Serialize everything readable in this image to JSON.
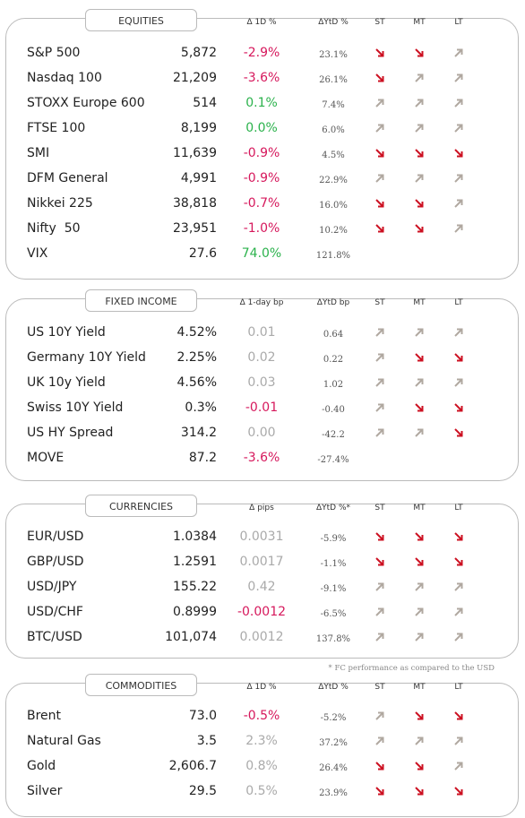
{
  "sections": [
    {
      "title": "EQUITIES",
      "headers": [
        "Δ 1D %",
        "ΔYtD %",
        "ST",
        "MT",
        "LT"
      ],
      "up_color": "#2bb24c",
      "rows": [
        [
          "S&P 500",
          "5,872",
          "-2.9%",
          "23.1%"
        ],
        [
          "Nasdaq 100",
          "21,209",
          "-3.6%",
          "26.1%"
        ],
        [
          "STOXX Europe 600",
          "514",
          "0.1%",
          "7.4%"
        ],
        [
          "FTSE 100",
          "8,199",
          "0.0%",
          "6.0%"
        ],
        [
          "SMI",
          "11,639",
          "-0.9%",
          "4.5%"
        ],
        [
          "DFM General",
          "4,991",
          "-0.9%",
          "22.9%"
        ],
        [
          "Nikkei 225",
          "38,818",
          "-0.7%",
          "16.0%"
        ],
        [
          "Nifty  50",
          "23,951",
          "-1.0%",
          "10.2%"
        ],
        [
          "VIX",
          "27.6",
          "74.0%",
          "121.8%"
        ]
      ]
    },
    {
      "title": "FIXED INCOME",
      "headers": [
        "Δ 1-day bp",
        "ΔYtD bp",
        "ST",
        "MT",
        "LT"
      ],
      "up_color": "#aaaaaa",
      "rows": [
        [
          "US 10Y Yield",
          "4.52%",
          "0.01",
          "0.64"
        ],
        [
          "Germany 10Y Yield",
          "2.25%",
          "0.02",
          "0.22"
        ],
        [
          "UK 10y Yield",
          "4.56%",
          "0.03",
          "1.02"
        ],
        [
          "Swiss 10Y Yield",
          "0.3%",
          "-0.01",
          "-0.40"
        ],
        [
          "US HY Spread",
          "314.2",
          "0.00",
          "-42.2"
        ],
        [
          "MOVE",
          "87.2",
          "-3.6%",
          "-27.4%"
        ]
      ]
    },
    {
      "title": "CURRENCIES",
      "headers": [
        "Δ pips",
        "ΔYtD %*",
        "ST",
        "MT",
        "LT"
      ],
      "up_color": "#aaaaaa",
      "rows": [
        [
          "EUR/USD",
          "1.0384",
          "0.0031",
          "-5.9%"
        ],
        [
          "GBP/USD",
          "1.2591",
          "0.0017",
          "-1.1%"
        ],
        [
          "USD/JPY",
          "155.22",
          "0.42",
          "-9.1%"
        ],
        [
          "USD/CHF",
          "0.8999",
          "-0.0012",
          "-6.5%"
        ],
        [
          "BTC/USD",
          "101,074",
          "0.0012",
          "137.8%"
        ]
      ]
    },
    {
      "title": "COMMODITIES",
      "headers": [
        "Δ 1D %",
        "ΔYtD %",
        "ST",
        "MT",
        "LT"
      ],
      "up_color": "#aaaaaa",
      "rows": [
        [
          "Brent",
          "73.0",
          "-0.5%",
          "-5.2%"
        ],
        [
          "Natural Gas",
          "3.5",
          "2.3%",
          "37.2%"
        ],
        [
          "Gold",
          "2,606.7",
          "0.8%",
          "26.4%"
        ],
        [
          "Silver",
          "29.5",
          "0.5%",
          "23.9%"
        ]
      ]
    }
  ],
  "footnote": "* FC performance as compared to the USD"
}
